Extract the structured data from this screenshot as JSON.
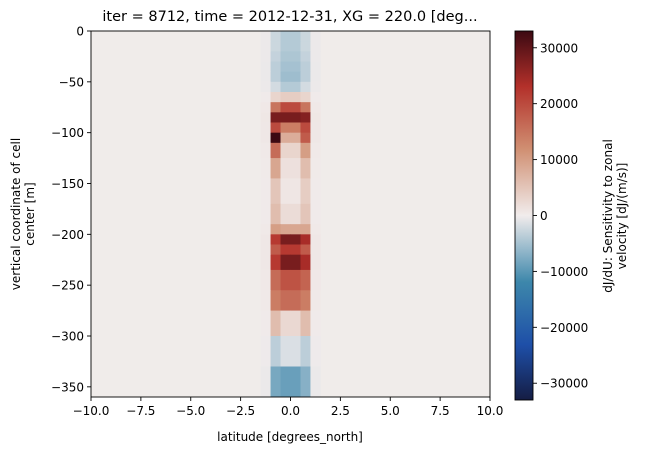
{
  "chart_data": {
    "type": "heatmap",
    "title": "iter = 8712, time = 2012-12-31, XG = 220.0 [deg...",
    "xlabel": "latitude [degrees_north]",
    "ylabel_lines": [
      "vertical coordinate of cell",
      "center [m]"
    ],
    "xlim": [
      -10,
      10
    ],
    "ylim": [
      -360,
      0
    ],
    "x_ticks": [
      -10,
      -7.5,
      -5,
      -2.5,
      0,
      2.5,
      5,
      7.5,
      10
    ],
    "x_tick_labels": [
      "−10.0",
      "−7.5",
      "−5.0",
      "−2.5",
      "0.0",
      "2.5",
      "5.0",
      "7.5",
      "10.0"
    ],
    "y_ticks": [
      0,
      -50,
      -100,
      -150,
      -200,
      -250,
      -300,
      -350
    ],
    "y_tick_labels": [
      "0",
      "−50",
      "−100",
      "−150",
      "−200",
      "−250",
      "−300",
      "−350"
    ],
    "colorbar": {
      "label_lines": [
        "dJ/dU: Sensitivity to zonal",
        "velocity [dJ/(m/s)]"
      ],
      "range": [
        -33000,
        33000
      ],
      "ticks": [
        30000,
        20000,
        10000,
        0,
        -10000,
        -20000,
        -30000
      ],
      "tick_labels": [
        "30000",
        "20000",
        "10000",
        "0",
        "−10000",
        "−20000",
        "−30000"
      ],
      "colormap": "balance"
    },
    "lat_columns": [
      -2.25,
      -1.75,
      -1.25,
      -0.75,
      -0.25,
      0.25,
      0.75,
      1.25,
      1.75,
      2.25
    ],
    "depth_levels": [
      {
        "top": 0,
        "bottom": -10,
        "values": [
          0,
          0,
          -300,
          -2500,
          -4000,
          -4000,
          -2500,
          -300,
          0,
          0
        ]
      },
      {
        "top": -10,
        "bottom": -20,
        "values": [
          0,
          0,
          -300,
          -2500,
          -4000,
          -4000,
          -2500,
          -300,
          0,
          0
        ]
      },
      {
        "top": -20,
        "bottom": -30,
        "values": [
          0,
          0,
          -300,
          -3000,
          -4500,
          -4500,
          -3000,
          -300,
          0,
          0
        ]
      },
      {
        "top": -30,
        "bottom": -40,
        "values": [
          0,
          0,
          -400,
          -3500,
          -5000,
          -5000,
          -3500,
          -400,
          0,
          0
        ]
      },
      {
        "top": -40,
        "bottom": -50,
        "values": [
          0,
          0,
          -400,
          -3500,
          -5500,
          -5500,
          -3500,
          -400,
          0,
          0
        ]
      },
      {
        "top": -50,
        "bottom": -60,
        "values": [
          0,
          0,
          -300,
          -2000,
          -4000,
          -4000,
          -2000,
          -300,
          0,
          0
        ]
      },
      {
        "top": -60,
        "bottom": -70,
        "values": [
          0,
          0,
          200,
          3000,
          4000,
          4000,
          3000,
          200,
          0,
          0
        ]
      },
      {
        "top": -70,
        "bottom": -80,
        "values": [
          0,
          0,
          500,
          15000,
          20000,
          20000,
          15000,
          500,
          0,
          0
        ]
      },
      {
        "top": -80,
        "bottom": -90,
        "values": [
          0,
          0,
          700,
          28000,
          28000,
          28000,
          27000,
          700,
          0,
          0
        ]
      },
      {
        "top": -90,
        "bottom": -100,
        "values": [
          0,
          0,
          600,
          20000,
          14000,
          14000,
          20000,
          600,
          0,
          0
        ]
      },
      {
        "top": -100,
        "bottom": -110,
        "values": [
          0,
          0,
          600,
          33000,
          8000,
          8000,
          18000,
          600,
          0,
          0
        ]
      },
      {
        "top": -110,
        "bottom": -125,
        "values": [
          0,
          0,
          400,
          16000,
          3000,
          3000,
          10000,
          400,
          0,
          0
        ]
      },
      {
        "top": -125,
        "bottom": -145,
        "values": [
          0,
          0,
          300,
          9000,
          1500,
          1500,
          6000,
          300,
          0,
          0
        ]
      },
      {
        "top": -145,
        "bottom": -170,
        "values": [
          0,
          0,
          200,
          5000,
          800,
          800,
          4000,
          200,
          0,
          0
        ]
      },
      {
        "top": -170,
        "bottom": -190,
        "values": [
          0,
          0,
          200,
          6000,
          2000,
          2000,
          5000,
          200,
          0,
          0
        ]
      },
      {
        "top": -190,
        "bottom": -200,
        "values": [
          0,
          0,
          400,
          10000,
          9000,
          9000,
          9000,
          400,
          0,
          0
        ]
      },
      {
        "top": -200,
        "bottom": -210,
        "values": [
          0,
          0,
          600,
          22000,
          28000,
          28000,
          24000,
          600,
          0,
          0
        ]
      },
      {
        "top": -210,
        "bottom": -220,
        "values": [
          0,
          0,
          600,
          18000,
          22000,
          22000,
          18000,
          600,
          0,
          0
        ]
      },
      {
        "top": -220,
        "bottom": -235,
        "values": [
          0,
          0,
          600,
          22000,
          28000,
          28000,
          24000,
          600,
          0,
          0
        ]
      },
      {
        "top": -235,
        "bottom": -255,
        "values": [
          0,
          0,
          500,
          16000,
          19000,
          19000,
          17000,
          500,
          0,
          0
        ]
      },
      {
        "top": -255,
        "bottom": -275,
        "values": [
          0,
          0,
          400,
          14000,
          16000,
          16000,
          14000,
          400,
          0,
          0
        ]
      },
      {
        "top": -275,
        "bottom": -300,
        "values": [
          0,
          0,
          200,
          6000,
          2500,
          2500,
          6000,
          200,
          0,
          0
        ]
      },
      {
        "top": -300,
        "bottom": -330,
        "values": [
          0,
          0,
          -200,
          -3500,
          -1500,
          -1500,
          -3500,
          -200,
          0,
          0
        ]
      },
      {
        "top": -330,
        "bottom": -360,
        "values": [
          0,
          0,
          -400,
          -8000,
          -9000,
          -9000,
          -7000,
          -400,
          0,
          0
        ]
      }
    ]
  }
}
